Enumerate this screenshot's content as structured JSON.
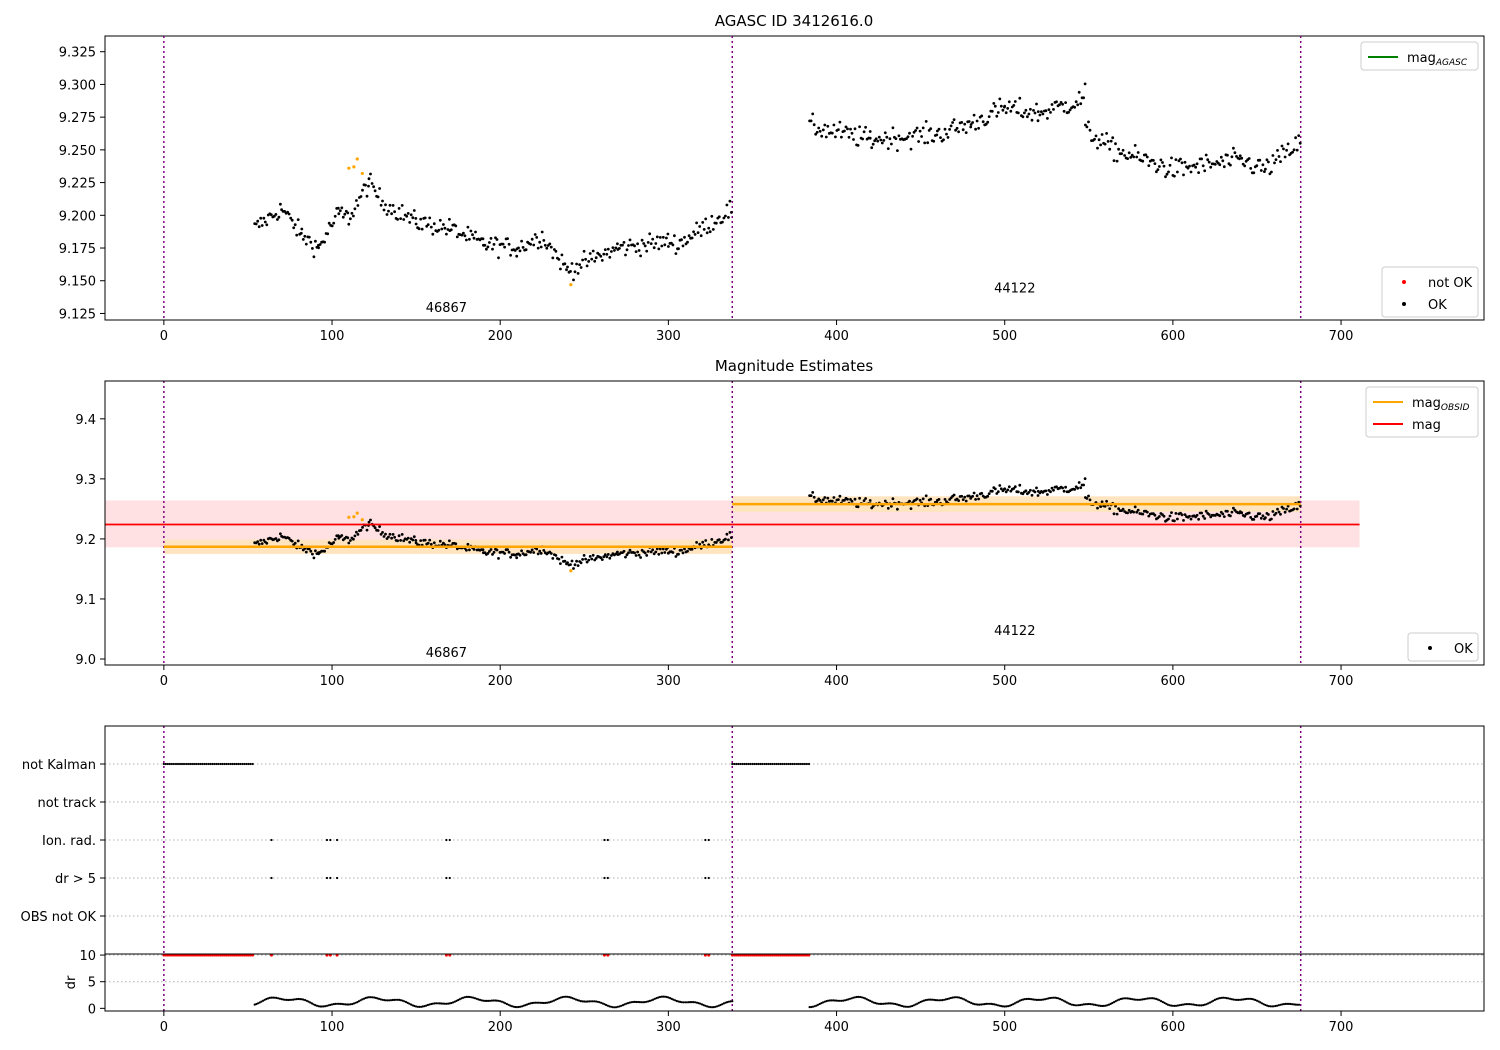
{
  "colors": {
    "ok": "#000000",
    "not_ok": "#ff0000",
    "highlight": "#ffa500",
    "agasc_line": "#008000",
    "obsid_line": "#ffa500",
    "mag_line": "#ff0000",
    "mag_band": "#ffe0e3",
    "obsid_band": "#ffe4c0",
    "vline": "#800080"
  },
  "chart_data": [
    {
      "type": "scatter",
      "title": "AGASC ID 3412616.0",
      "xlim": [
        -35,
        785
      ],
      "ylim": [
        9.12,
        9.337
      ],
      "x_ticks": [
        0,
        100,
        200,
        300,
        400,
        500,
        600,
        700
      ],
      "y_ticks": [
        9.125,
        9.15,
        9.175,
        9.2,
        9.225,
        9.25,
        9.275,
        9.3,
        9.325
      ],
      "y_tick_labels": [
        "9.125",
        "9.150",
        "9.175",
        "9.200",
        "9.225",
        "9.250",
        "9.275",
        "9.300",
        "9.325"
      ],
      "vlines": [
        0,
        338,
        676
      ],
      "obsid_labels": [
        {
          "text": "46867",
          "x": 168,
          "y": 9.126
        },
        {
          "text": "44122",
          "x": 506,
          "y": 9.141
        }
      ],
      "legends": [
        {
          "position": "upper-right",
          "entries": [
            {
              "label": "mag",
              "sub": "AGASC",
              "kind": "line",
              "color": "#008000"
            }
          ]
        },
        {
          "position": "lower-right",
          "entries": [
            {
              "label": "not OK",
              "kind": "dot",
              "color": "#ff0000"
            },
            {
              "label": "OK",
              "kind": "dot",
              "color": "#000000"
            }
          ]
        }
      ],
      "series": [
        {
          "name": "OK",
          "points_from": "observations"
        }
      ]
    },
    {
      "type": "scatter",
      "title": "Magnitude Estimates",
      "xlim": [
        -35,
        785
      ],
      "ylim": [
        8.99,
        9.463
      ],
      "x_ticks": [
        0,
        100,
        200,
        300,
        400,
        500,
        600,
        700
      ],
      "y_ticks": [
        9.0,
        9.1,
        9.2,
        9.3,
        9.4
      ],
      "y_tick_labels": [
        "9.0",
        "9.1",
        "9.2",
        "9.3",
        "9.4"
      ],
      "vlines": [
        0,
        338,
        676
      ],
      "mag": {
        "value": 9.224,
        "band": [
          9.186,
          9.264
        ],
        "x_range": [
          -35,
          711
        ]
      },
      "mag_obsid": [
        {
          "x_range": [
            0,
            338
          ],
          "value": 9.187,
          "band": [
            9.175,
            9.199
          ]
        },
        {
          "x_range": [
            338,
            676
          ],
          "value": 9.258,
          "band": [
            9.245,
            9.271
          ]
        }
      ],
      "obsid_labels": [
        {
          "text": "46867",
          "x": 168,
          "y": 9.003
        },
        {
          "text": "44122",
          "x": 506,
          "y": 9.04
        }
      ],
      "legends": [
        {
          "position": "upper-right",
          "entries": [
            {
              "label": "mag",
              "sub": "OBSID",
              "kind": "line",
              "color": "#ffa500"
            },
            {
              "label": "mag",
              "kind": "line",
              "color": "#ff0000"
            }
          ]
        },
        {
          "position": "lower-right",
          "entries": [
            {
              "label": "OK",
              "kind": "dot",
              "color": "#000000"
            }
          ]
        }
      ]
    },
    {
      "type": "scatter",
      "title": "",
      "xlim": [
        -35,
        785
      ],
      "categories": [
        "not Kalman",
        "not track",
        "Ion. rad.",
        "dr > 5",
        "OBS not OK"
      ],
      "vlines": [
        0,
        338,
        676
      ],
      "flags": {
        "not Kalman": [
          [
            0,
            54
          ],
          [
            338,
            384
          ]
        ],
        "not track": [],
        "Ion. rad.": [
          64,
          97,
          99,
          103,
          168,
          170,
          262,
          264,
          322,
          324
        ],
        "dr > 5": [
          64,
          97,
          99,
          103,
          168,
          170,
          262,
          264,
          322,
          324
        ],
        "OBS not OK": []
      }
    },
    {
      "type": "scatter",
      "title": "",
      "ylabel": "dr",
      "xlim": [
        -35,
        785
      ],
      "ylim": [
        -0.5,
        10.2
      ],
      "x_ticks": [
        0,
        100,
        200,
        300,
        400,
        500,
        600,
        700
      ],
      "x_tick_labels": [
        "0",
        "100",
        "200",
        "300",
        "400",
        "500",
        "600",
        "700"
      ],
      "y_ticks": [
        0,
        5,
        10
      ],
      "y_tick_labels": [
        "0",
        "5",
        "10"
      ],
      "vlines": [
        0,
        338,
        676
      ],
      "clipped_value": 10
    }
  ],
  "observations": [
    {
      "obsid": "46867",
      "start": 54,
      "end": 338,
      "segments": [
        [
          54,
          9.19,
          9.205
        ],
        [
          70,
          9.205,
          9.185
        ],
        [
          82,
          9.185,
          9.175
        ],
        [
          92,
          9.175,
          9.202
        ],
        [
          104,
          9.202,
          9.198
        ],
        [
          110,
          9.198,
          9.225
        ],
        [
          122,
          9.225,
          9.21
        ],
        [
          130,
          9.21,
          9.195
        ],
        [
          150,
          9.195,
          9.19
        ],
        [
          170,
          9.19,
          9.178
        ],
        [
          190,
          9.178,
          9.175
        ],
        [
          210,
          9.175,
          9.184
        ],
        [
          225,
          9.184,
          9.158
        ],
        [
          240,
          9.158,
          9.175
        ],
        [
          270,
          9.175,
          9.18
        ],
        [
          300,
          9.18,
          9.178
        ],
        [
          306,
          9.178,
          9.205
        ],
        [
          338,
          9.205,
          9.198
        ]
      ],
      "noise": 0.008
    },
    {
      "obsid": "44122",
      "start": 384,
      "end": 676,
      "segments": [
        [
          384,
          9.268,
          9.258
        ],
        [
          420,
          9.258,
          9.262
        ],
        [
          460,
          9.262,
          9.27
        ],
        [
          480,
          9.27,
          9.282
        ],
        [
          500,
          9.282,
          9.278
        ],
        [
          520,
          9.278,
          9.288
        ],
        [
          546,
          9.288,
          9.298
        ],
        [
          548,
          9.265,
          9.25
        ],
        [
          565,
          9.25,
          9.235
        ],
        [
          600,
          9.235,
          9.242
        ],
        [
          640,
          9.242,
          9.235
        ],
        [
          655,
          9.235,
          9.256
        ],
        [
          676,
          9.256,
          9.258
        ]
      ],
      "noise": 0.009
    }
  ],
  "highlights": [
    [
      110,
      9.236
    ],
    [
      113,
      9.237
    ],
    [
      115,
      9.243
    ],
    [
      118,
      9.232
    ],
    [
      242,
      9.147
    ]
  ]
}
